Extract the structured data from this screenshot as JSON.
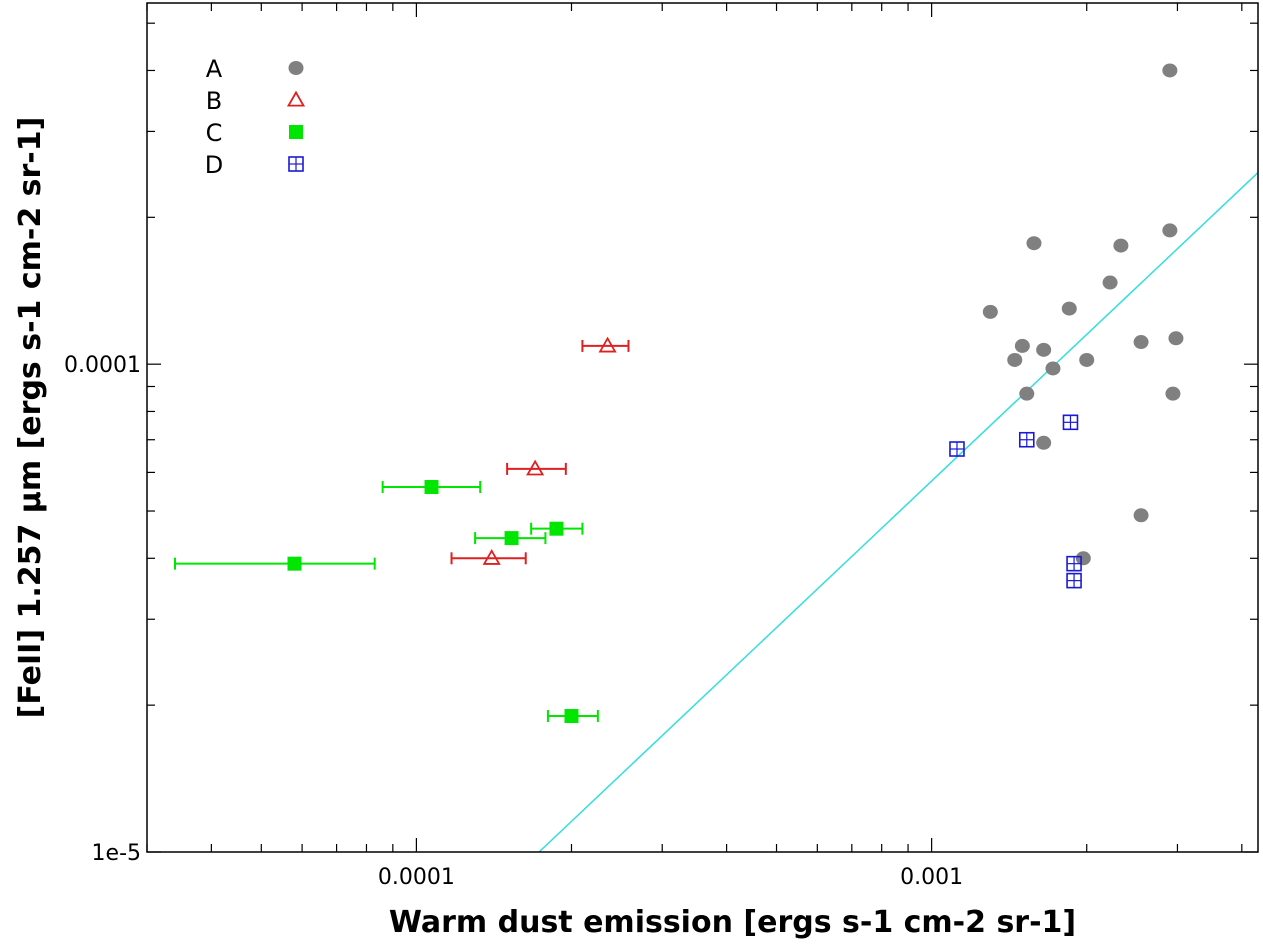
{
  "chart_data": {
    "type": "scatter",
    "xscale": "log",
    "yscale": "log",
    "xlim": [
      3e-05,
      0.0043
    ],
    "ylim": [
      1e-05,
      0.00055
    ],
    "xlabel": "Warm dust emission [ergs s-1 cm-2 sr-1]",
    "ylabel": "[FeII] 1.257 μm [ergs s-1 cm-2 sr-1]",
    "xticks": [
      {
        "value": 0.0001,
        "label": "0.0001"
      },
      {
        "value": 0.001,
        "label": "0.001"
      }
    ],
    "yticks": [
      {
        "value": 1e-05,
        "label": "1e-5"
      },
      {
        "value": 0.0001,
        "label": "0.0001"
      }
    ],
    "grid": false,
    "legend_position": "top-left",
    "series": [
      {
        "name": "A",
        "marker": "filled-circle",
        "color": "#808080",
        "points": [
          {
            "x": 0.0029,
            "y": 0.0004
          },
          {
            "x": 0.0029,
            "y": 0.000188
          },
          {
            "x": 0.00158,
            "y": 0.000177
          },
          {
            "x": 0.00233,
            "y": 0.000175
          },
          {
            "x": 0.00222,
            "y": 0.000147
          },
          {
            "x": 0.0013,
            "y": 0.000128
          },
          {
            "x": 0.00185,
            "y": 0.00013
          },
          {
            "x": 0.0015,
            "y": 0.000109
          },
          {
            "x": 0.00165,
            "y": 0.000107
          },
          {
            "x": 0.00255,
            "y": 0.000111
          },
          {
            "x": 0.00298,
            "y": 0.000113
          },
          {
            "x": 0.00145,
            "y": 0.000102
          },
          {
            "x": 0.00172,
            "y": 9.8e-05
          },
          {
            "x": 0.002,
            "y": 0.000102
          },
          {
            "x": 0.00153,
            "y": 8.7e-05
          },
          {
            "x": 0.00294,
            "y": 8.7e-05
          },
          {
            "x": 0.00165,
            "y": 6.9e-05
          },
          {
            "x": 0.00255,
            "y": 4.9e-05
          },
          {
            "x": 0.00197,
            "y": 4e-05
          }
        ]
      },
      {
        "name": "B",
        "marker": "open-triangle",
        "color": "#e02020",
        "points": [
          {
            "x": 0.000235,
            "y": 0.000109,
            "xerr": [
              0.00021,
              0.000258
            ]
          },
          {
            "x": 0.00017,
            "y": 6.1e-05,
            "xerr": [
              0.00015,
              0.000195
            ]
          },
          {
            "x": 0.00014,
            "y": 4e-05,
            "xerr": [
              0.000117,
              0.000163
            ]
          }
        ]
      },
      {
        "name": "C",
        "marker": "filled-square",
        "color": "#00e600",
        "points": [
          {
            "x": 0.000107,
            "y": 5.6e-05,
            "xerr": [
              8.6e-05,
              0.000133
            ]
          },
          {
            "x": 0.000187,
            "y": 4.6e-05,
            "xerr": [
              0.000167,
              0.00021
            ]
          },
          {
            "x": 0.000153,
            "y": 4.4e-05,
            "xerr": [
              0.00013,
              0.000178
            ]
          },
          {
            "x": 5.8e-05,
            "y": 3.9e-05,
            "xerr": [
              3.4e-05,
              8.3e-05
            ]
          },
          {
            "x": 0.0002,
            "y": 1.9e-05,
            "xerr": [
              0.00018,
              0.000225
            ]
          }
        ]
      },
      {
        "name": "D",
        "marker": "open-square",
        "color": "#1a1ad6",
        "points": [
          {
            "x": 0.00112,
            "y": 6.7e-05
          },
          {
            "x": 0.00153,
            "y": 7e-05
          },
          {
            "x": 0.00186,
            "y": 7.6e-05
          },
          {
            "x": 0.00189,
            "y": 3.9e-05
          },
          {
            "x": 0.00189,
            "y": 3.6e-05
          }
        ]
      }
    ],
    "fit_line": {
      "color": "#33dde0",
      "points": [
        {
          "x": 0.000173,
          "y": 1e-05
        },
        {
          "x": 0.0043,
          "y": 0.000247
        }
      ]
    }
  }
}
